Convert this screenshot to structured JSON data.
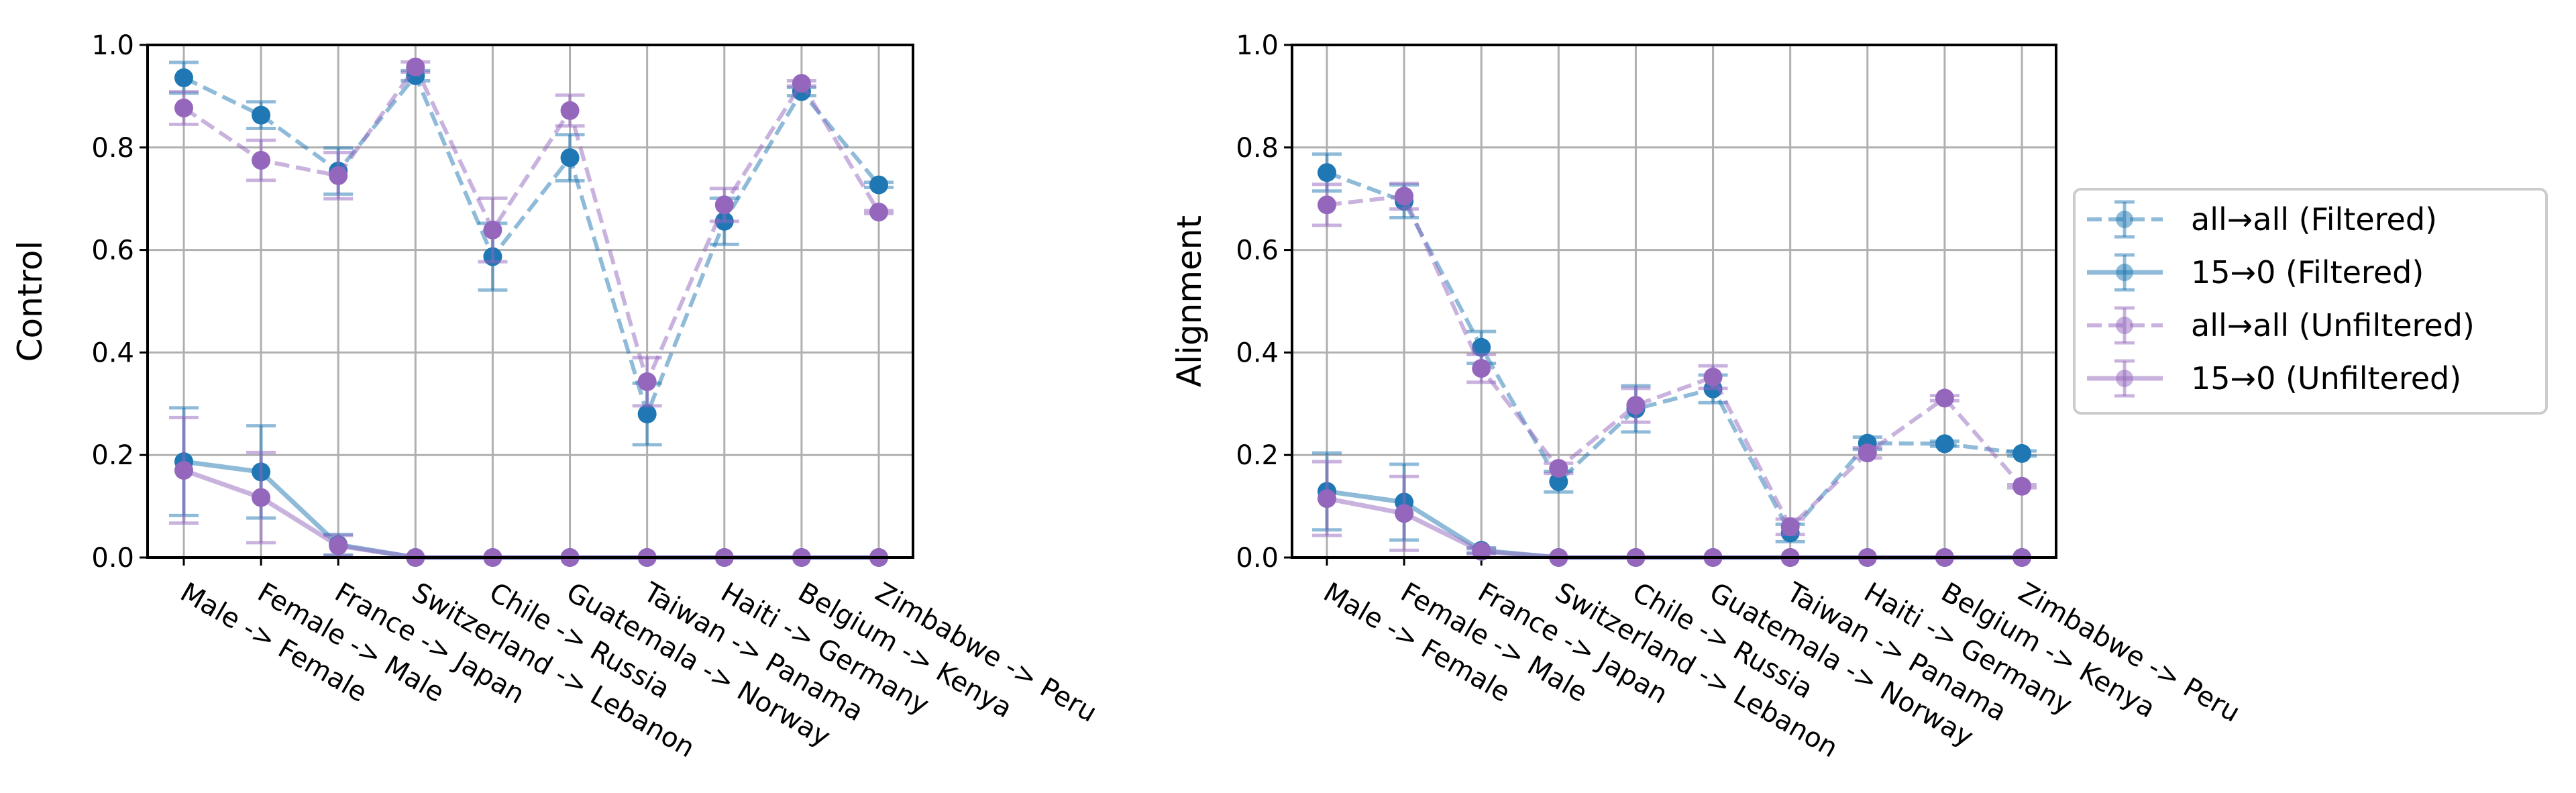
{
  "chart_data": [
    {
      "type": "line",
      "ylabel": "Control",
      "xlabel": "",
      "ylim": [
        0,
        1.0
      ],
      "yticks": [
        "0.0",
        "0.2",
        "0.4",
        "0.6",
        "0.8",
        "1.0"
      ],
      "grid": true,
      "categories": [
        "Male -> Female",
        "Female -> Male",
        "France -> Japan",
        "Switzerland -> Lebanon",
        "Chile -> Russia",
        "Guatemala -> Norway",
        "Taiwan -> Panama",
        "Haiti -> Germany",
        "Belgium -> Kenya",
        "Zimbabwe -> Peru"
      ],
      "series": [
        {
          "name": "all→all (Filtered)",
          "color": "#1f77b4",
          "style": "dashed",
          "values": [
            0.936,
            0.863,
            0.754,
            0.94,
            0.587,
            0.78,
            0.28,
            0.656,
            0.909,
            0.727
          ],
          "errors": [
            0.03,
            0.026,
            0.045,
            0.01,
            0.065,
            0.045,
            0.06,
            0.045,
            0.008,
            0.005
          ]
        },
        {
          "name": "15→0 (Filtered)",
          "color": "#1f77b4",
          "style": "solid",
          "values": [
            0.187,
            0.167,
            0.025,
            0,
            0,
            0,
            0,
            0,
            0,
            0
          ],
          "errors": [
            0.105,
            0.09,
            0.02,
            0,
            0,
            0,
            0,
            0,
            0,
            0
          ]
        },
        {
          "name": "all→all (Unfiltered)",
          "color": "#9467bd",
          "style": "dashed",
          "values": [
            0.877,
            0.775,
            0.745,
            0.957,
            0.639,
            0.872,
            0.343,
            0.688,
            0.925,
            0.674
          ],
          "errors": [
            0.032,
            0.039,
            0.045,
            0.01,
            0.062,
            0.03,
            0.047,
            0.032,
            0.005,
            0.003
          ]
        },
        {
          "name": "15→0 (Unfiltered)",
          "color": "#9467bd",
          "style": "solid",
          "values": [
            0.17,
            0.117,
            0.023,
            0,
            0,
            0,
            0,
            0,
            0,
            0
          ],
          "errors": [
            0.103,
            0.088,
            0.02,
            0,
            0,
            0,
            0,
            0,
            0,
            0
          ]
        }
      ]
    },
    {
      "type": "line",
      "ylabel": "Alignment",
      "xlabel": "",
      "ylim": [
        0,
        1.0
      ],
      "yticks": [
        "0.0",
        "0.2",
        "0.4",
        "0.6",
        "0.8",
        "1.0"
      ],
      "grid": true,
      "legend": "outside-right",
      "categories": [
        "Male -> Female",
        "Female -> Male",
        "France -> Japan",
        "Switzerland -> Lebanon",
        "Chile -> Russia",
        "Guatemala -> Norway",
        "Taiwan -> Panama",
        "Haiti -> Germany",
        "Belgium -> Kenya",
        "Zimbabwe -> Peru"
      ],
      "series": [
        {
          "name": "all→all (Filtered)",
          "color": "#1f77b4",
          "style": "dashed",
          "values": [
            0.751,
            0.695,
            0.41,
            0.148,
            0.29,
            0.329,
            0.048,
            0.223,
            0.222,
            0.203
          ],
          "errors": [
            0.036,
            0.032,
            0.031,
            0.02,
            0.045,
            0.027,
            0.017,
            0.012,
            0.005,
            0.005
          ]
        },
        {
          "name": "15→0 (Filtered)",
          "color": "#1f77b4",
          "style": "solid",
          "values": [
            0.129,
            0.108,
            0.014,
            0,
            0,
            0,
            0,
            0,
            0,
            0
          ],
          "errors": [
            0.075,
            0.074,
            0.005,
            0,
            0,
            0,
            0,
            0,
            0,
            0
          ]
        },
        {
          "name": "all→all (Unfiltered)",
          "color": "#9467bd",
          "style": "dashed",
          "values": [
            0.688,
            0.705,
            0.369,
            0.174,
            0.297,
            0.352,
            0.06,
            0.204,
            0.311,
            0.139
          ],
          "errors": [
            0.04,
            0.025,
            0.027,
            0.01,
            0.033,
            0.022,
            0.015,
            0.01,
            0.005,
            0.003
          ]
        },
        {
          "name": "15→0 (Unfiltered)",
          "color": "#9467bd",
          "style": "solid",
          "values": [
            0.115,
            0.086,
            0.012,
            0,
            0,
            0,
            0,
            0,
            0,
            0
          ],
          "errors": [
            0.072,
            0.072,
            0.005,
            0,
            0,
            0,
            0,
            0,
            0,
            0
          ]
        }
      ]
    }
  ]
}
